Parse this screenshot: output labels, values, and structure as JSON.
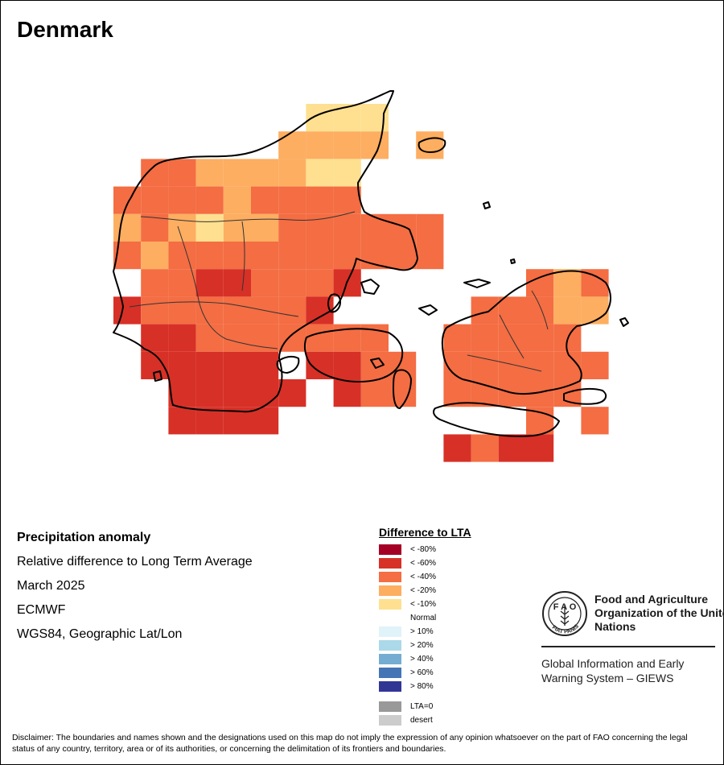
{
  "map": {
    "title": "Denmark",
    "info": {
      "line1": "Precipitation anomaly",
      "line2": "Relative difference to Long Term Average",
      "line3": "March 2025",
      "line4": "ECMWF",
      "line5": "WGS84, Geographic Lat/Lon"
    },
    "legend": {
      "title": "Difference to LTA",
      "items": [
        {
          "label": "< -80%",
          "color": "#a50026"
        },
        {
          "label": "< -60%",
          "color": "#d73027"
        },
        {
          "label": "< -40%",
          "color": "#f46d43"
        },
        {
          "label": "< -20%",
          "color": "#fdae61"
        },
        {
          "label": "< -10%",
          "color": "#fee090"
        },
        {
          "label": "Normal",
          "color": "#ffffff"
        },
        {
          "label": "> 10%",
          "color": "#e0f3f8"
        },
        {
          "label": "> 20%",
          "color": "#abd9e9"
        },
        {
          "label": "> 40%",
          "color": "#74add1"
        },
        {
          "label": "> 60%",
          "color": "#4575b4"
        },
        {
          "label": "> 80%",
          "color": "#313695"
        }
      ],
      "extra": [
        {
          "label": "LTA=0",
          "color": "#999999"
        },
        {
          "label": "desert",
          "color": "#cccccc"
        }
      ]
    },
    "logo": {
      "org_name": "Food and Agriculture Organization of the United Nations",
      "seal_text": "FAO FIAT PANIS",
      "program": "Global Information and Early Warning System – GIEWS"
    },
    "disclaimer": "Disclaimer: The boundaries and names shown and the designations used on this map do not imply the expression of any opinion whatsoever on the part of FAO concerning the legal status of any country, territory, area or of its authorities, or concerning the delimitation of its frontiers and boundaries."
  }
}
